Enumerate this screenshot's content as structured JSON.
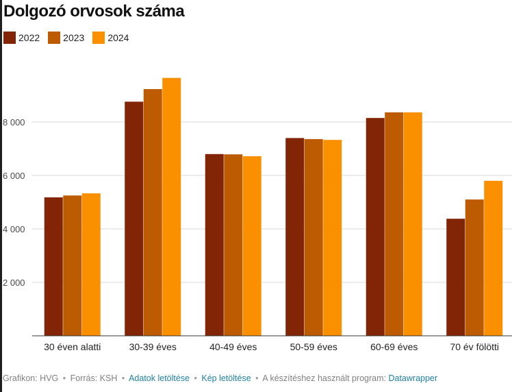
{
  "title": "Dolgozó orvosok száma",
  "footer": {
    "credit": "Grafikon: HVG",
    "source": "Forrás: KSH",
    "data_link": "Adatok letöltése",
    "image_link": "Kép letöltése",
    "tool_text": "A készítéshez használt program:",
    "tool_link": "Datawrapper",
    "separator": "•"
  },
  "chart_data": {
    "type": "bar",
    "title": "Dolgozó orvosok száma",
    "xlabel": "",
    "ylabel": "",
    "categories": [
      "30 éven alatti",
      "30-39 éves",
      "40-49 éves",
      "50-59 éves",
      "60-69 éves",
      "70 év fölötti"
    ],
    "series": [
      {
        "name": "2022",
        "color": "#822406",
        "values": [
          5180,
          8760,
          6800,
          7400,
          8150,
          4380
        ]
      },
      {
        "name": "2023",
        "color": "#bd5b02",
        "values": [
          5250,
          9230,
          6790,
          7360,
          8360,
          5100
        ]
      },
      {
        "name": "2024",
        "color": "#fa9000",
        "values": [
          5330,
          9650,
          6720,
          7330,
          8360,
          5800
        ]
      }
    ],
    "ylim": [
      0,
      10000
    ],
    "yticks": [
      2000,
      4000,
      6000,
      8000
    ],
    "ytick_labels": [
      "2 000",
      "4 000",
      "6 000",
      "8 000"
    ],
    "grid": true,
    "legend_position": "top-left"
  }
}
